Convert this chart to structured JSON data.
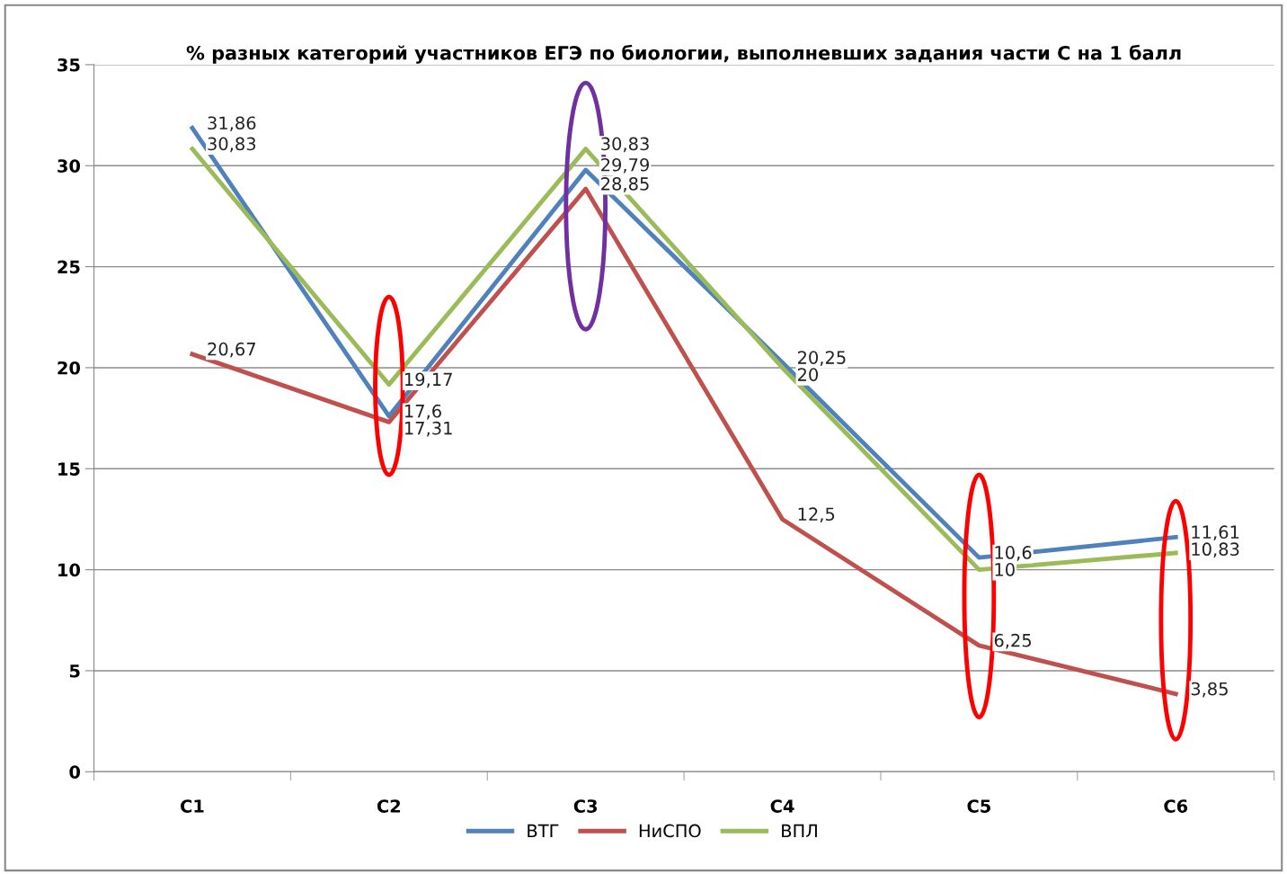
{
  "chart_data": {
    "type": "line",
    "title": "% разных категорий участников ЕГЭ по биологии, выполневших задания части С на 1 балл",
    "categories": [
      "С1",
      "С2",
      "С3",
      "С4",
      "С5",
      "С6"
    ],
    "series": [
      {
        "name": "ВТГ",
        "color": "#4f81bd",
        "values": [
          31.86,
          17.6,
          29.79,
          20.25,
          10.6,
          11.61
        ],
        "value_labels": [
          "31,86",
          "17,6",
          "29,79",
          "20,25",
          "10,6",
          "11,61"
        ]
      },
      {
        "name": "НиСПО",
        "color": "#c0504d",
        "values": [
          20.67,
          17.31,
          28.85,
          12.5,
          6.25,
          3.85
        ],
        "value_labels": [
          "20,67",
          "17,31",
          "28,85",
          "12,5",
          "6,25",
          "3,85"
        ]
      },
      {
        "name": "ВПЛ",
        "color": "#9bbb59",
        "values": [
          30.83,
          19.17,
          30.83,
          20,
          10,
          10.83
        ],
        "value_labels": [
          "30,83",
          "19,17",
          "30,83",
          "20",
          "10",
          "10,83"
        ]
      }
    ],
    "ylim": [
      0,
      35
    ],
    "yticks": [
      0,
      5,
      10,
      15,
      20,
      25,
      30,
      35
    ],
    "grid": "y",
    "legend": "bottom",
    "marker": "none",
    "line_style": "solid"
  }
}
